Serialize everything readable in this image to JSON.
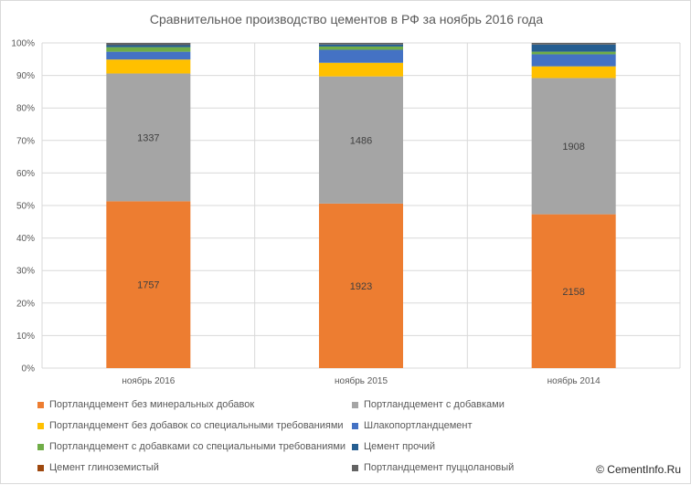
{
  "chart_data": {
    "type": "bar",
    "stacked": true,
    "percent": true,
    "title": "Сравнительное производство цементов в РФ за ноябрь 2016 года",
    "categories": [
      "ноябрь 2016",
      "ноябрь 2015",
      "ноябрь 2014"
    ],
    "y_ticks": [
      "0%",
      "10%",
      "20%",
      "30%",
      "40%",
      "50%",
      "60%",
      "70%",
      "80%",
      "90%",
      "100%"
    ],
    "ylim": [
      0,
      100
    ],
    "grid": true,
    "legend_position": "bottom",
    "series": [
      {
        "name": "Портландцемент без минеральных добавок",
        "color": "#ed7d31",
        "percent": [
          51.3,
          50.6,
          47.3
        ],
        "labels": [
          "1757",
          "1923",
          "2158"
        ]
      },
      {
        "name": "Портландцемент с добавками",
        "color": "#a5a5a5",
        "percent": [
          39.3,
          39.1,
          41.9
        ],
        "labels": [
          "1337",
          "1486",
          "1908"
        ]
      },
      {
        "name": "Портландцемент без добавок со специальными требованиями",
        "color": "#ffc000",
        "percent": [
          4.3,
          4.2,
          3.6
        ],
        "labels": [
          "",
          "",
          ""
        ]
      },
      {
        "name": "Шлакопортландцемент",
        "color": "#4472c4",
        "percent": [
          2.4,
          4.0,
          3.7
        ],
        "labels": [
          "",
          "",
          ""
        ]
      },
      {
        "name": "Портландцемент с добавками со специальными требованиями",
        "color": "#70ad47",
        "percent": [
          1.4,
          1.0,
          0.8
        ],
        "labels": [
          "",
          "",
          ""
        ]
      },
      {
        "name": "Цемент прочий",
        "color": "#255e91",
        "percent": [
          0.6,
          0.6,
          2.2
        ],
        "labels": [
          "",
          "",
          ""
        ]
      },
      {
        "name": "Цемент глиноземистый",
        "color": "#9e480e",
        "percent": [
          0.0,
          0.0,
          0.0
        ],
        "labels": [
          "",
          "",
          ""
        ]
      },
      {
        "name": "Портландцемент пуццолановый",
        "color": "#636363",
        "percent": [
          0.7,
          0.5,
          0.5
        ],
        "labels": [
          "",
          "",
          ""
        ]
      }
    ]
  },
  "copyright": "© CementInfo.Ru"
}
